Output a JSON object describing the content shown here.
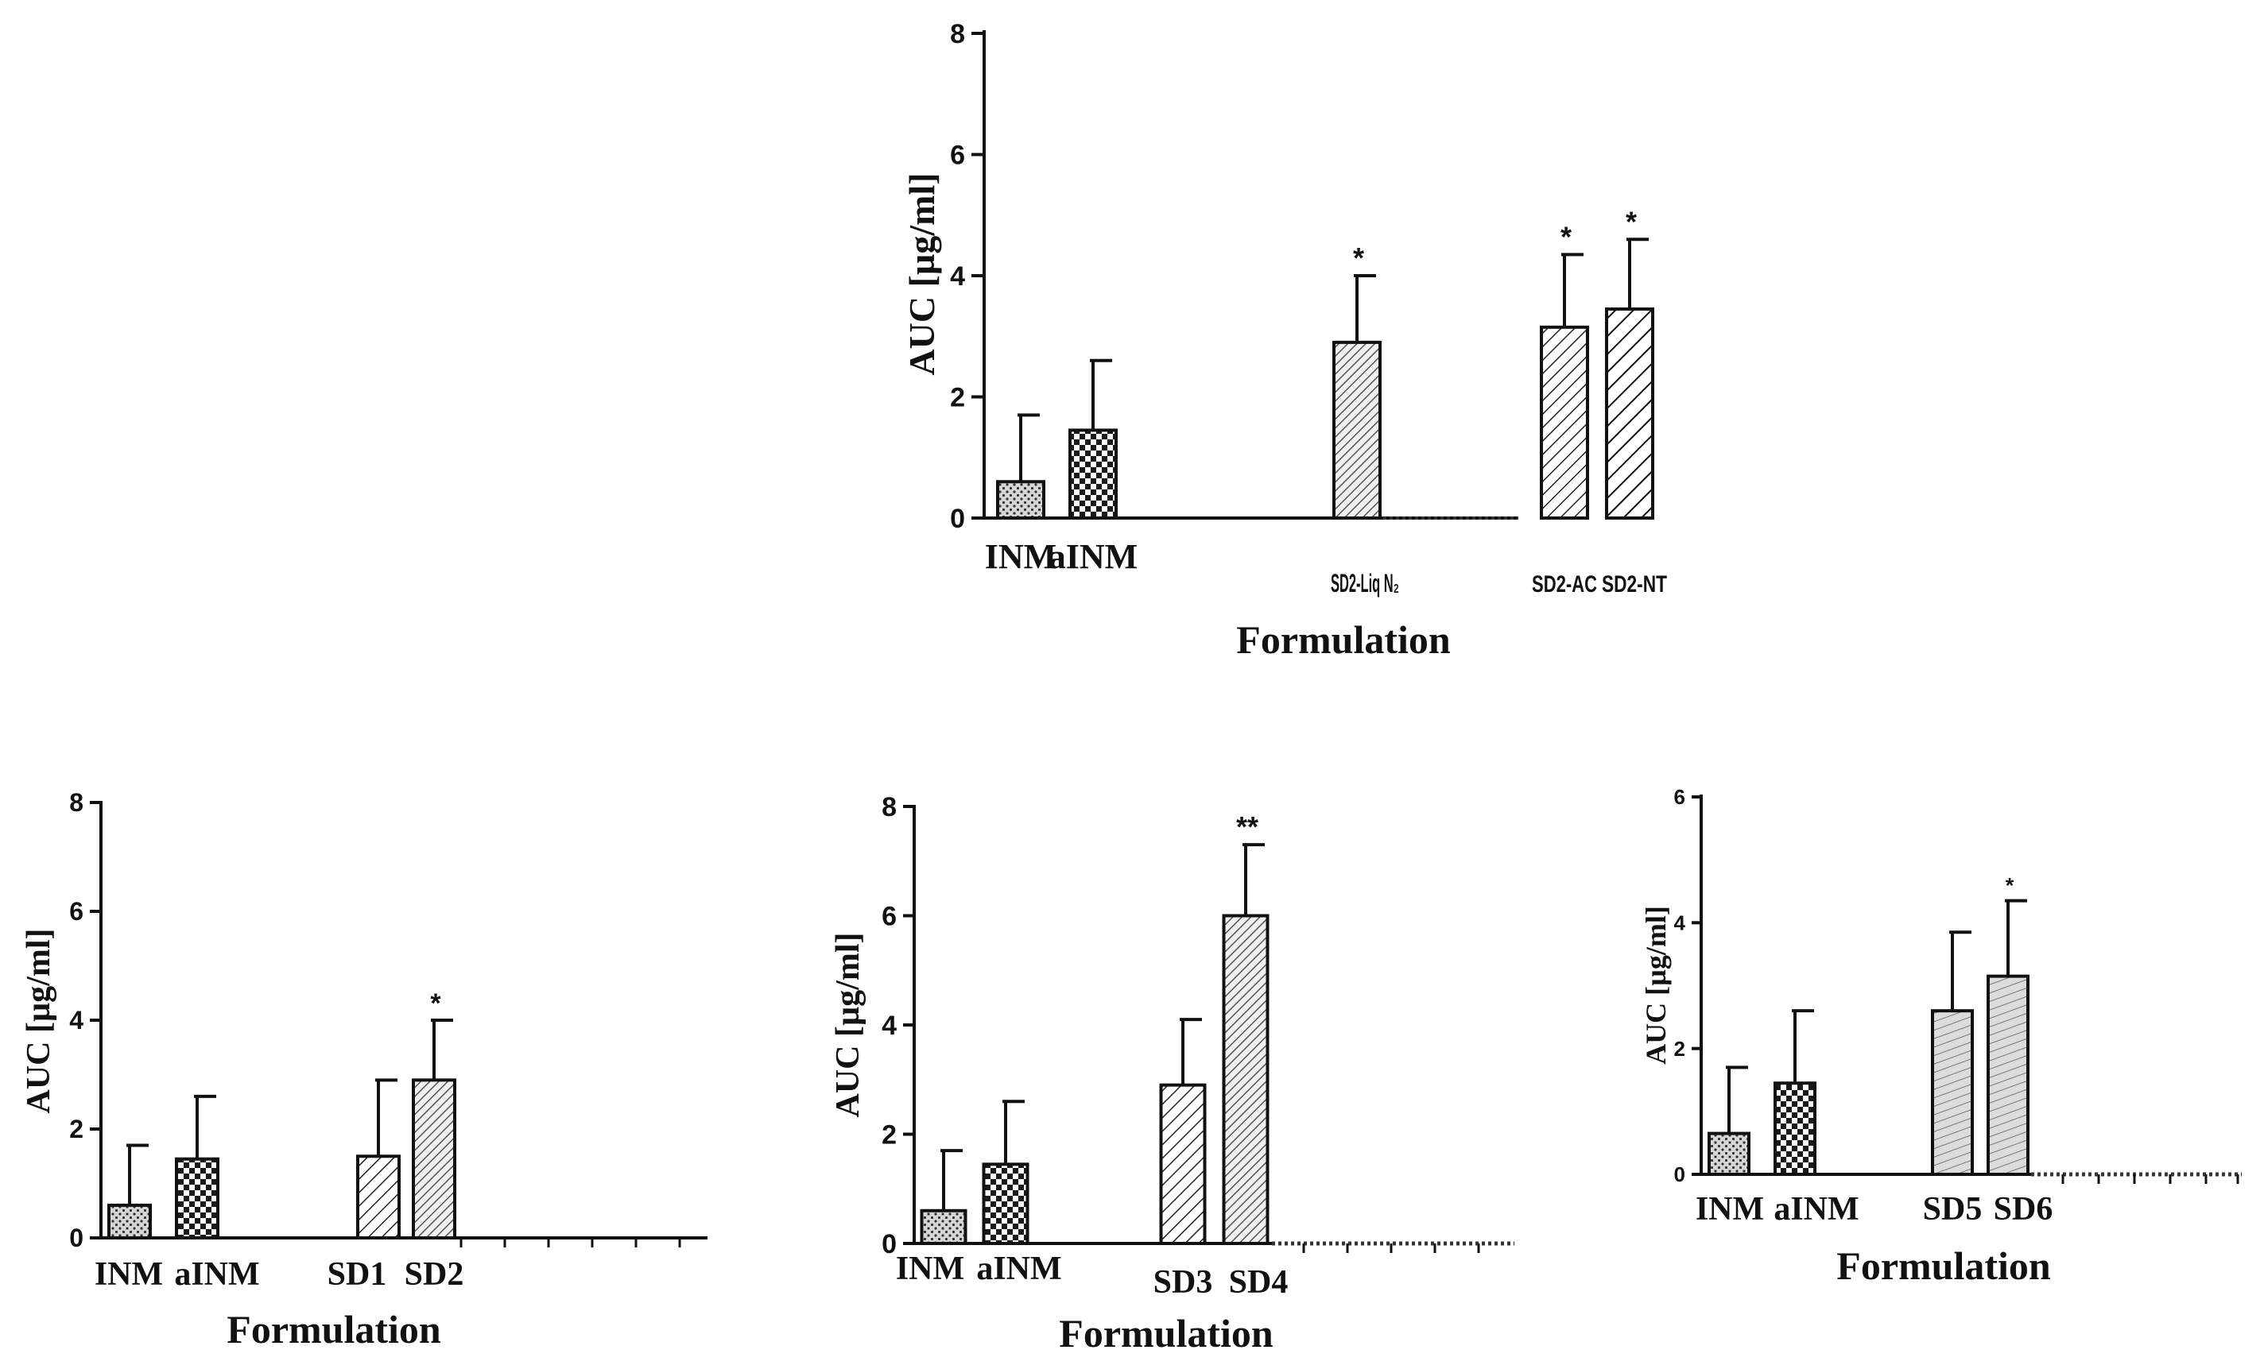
{
  "chart_data": [
    {
      "id": "top",
      "type": "bar",
      "ylabel": "AUC [µg/ml]",
      "xlabel": "Formulation",
      "ylim": [
        0,
        8
      ],
      "yticks": [
        "0",
        "2",
        "4",
        "6",
        "8"
      ],
      "bars": [
        {
          "label": "INM",
          "value": 0.6,
          "error": 1.1,
          "sig": "",
          "pattern": "dots"
        },
        {
          "label": "aINM",
          "value": 1.45,
          "error": 1.15,
          "sig": "",
          "pattern": "checker"
        },
        {
          "label": "SD2-Liq N₂",
          "value": 2.9,
          "error": 1.1,
          "sig": "*",
          "pattern": "hatch-fine"
        },
        {
          "label": "SD2-AC",
          "value": 3.15,
          "error": 1.2,
          "sig": "*",
          "pattern": "hatch-medium"
        },
        {
          "label": "SD2-NT",
          "value": 3.45,
          "error": 1.15,
          "sig": "*",
          "pattern": "hatch-coarse"
        }
      ]
    },
    {
      "id": "bottom-left",
      "type": "bar",
      "ylabel": "AUC [µg/ml]",
      "xlabel": "Formulation",
      "ylim": [
        0,
        8
      ],
      "yticks": [
        "0",
        "2",
        "4",
        "6",
        "8"
      ],
      "bars": [
        {
          "label": "INM",
          "value": 0.6,
          "error": 1.1,
          "sig": "",
          "pattern": "dots"
        },
        {
          "label": "aINM",
          "value": 1.45,
          "error": 1.15,
          "sig": "",
          "pattern": "checker"
        },
        {
          "label": "SD1",
          "value": 1.5,
          "error": 1.4,
          "sig": "",
          "pattern": "hatch-medium"
        },
        {
          "label": "SD2",
          "value": 2.9,
          "error": 1.1,
          "sig": "*",
          "pattern": "hatch-fine"
        }
      ]
    },
    {
      "id": "bottom-middle",
      "type": "bar",
      "ylabel": "AUC [µg/ml]",
      "xlabel": "Formulation",
      "ylim": [
        0,
        8
      ],
      "yticks": [
        "0",
        "2",
        "4",
        "6",
        "8"
      ],
      "bars": [
        {
          "label": "INM",
          "value": 0.6,
          "error": 1.1,
          "sig": "",
          "pattern": "dots"
        },
        {
          "label": "aINM",
          "value": 1.45,
          "error": 1.15,
          "sig": "",
          "pattern": "checker"
        },
        {
          "label": "SD3",
          "value": 2.9,
          "error": 1.2,
          "sig": "",
          "pattern": "hatch-medium"
        },
        {
          "label": "SD4",
          "value": 6.0,
          "error": 1.3,
          "sig": "**",
          "pattern": "hatch-fine"
        }
      ]
    },
    {
      "id": "bottom-right",
      "type": "bar",
      "ylabel": "AUC [µg/ml]",
      "xlabel": "Formulation",
      "ylim": [
        0,
        6
      ],
      "yticks": [
        "0",
        "2",
        "4",
        "6"
      ],
      "bars": [
        {
          "label": "INM",
          "value": 0.65,
          "error": 1.05,
          "sig": "",
          "pattern": "dots"
        },
        {
          "label": "aINM",
          "value": 1.45,
          "error": 1.15,
          "sig": "",
          "pattern": "checker"
        },
        {
          "label": "SD5",
          "value": 2.6,
          "error": 1.25,
          "sig": "",
          "pattern": "wave"
        },
        {
          "label": "SD6",
          "value": 3.15,
          "error": 1.2,
          "sig": "*",
          "pattern": "wave"
        }
      ]
    }
  ]
}
